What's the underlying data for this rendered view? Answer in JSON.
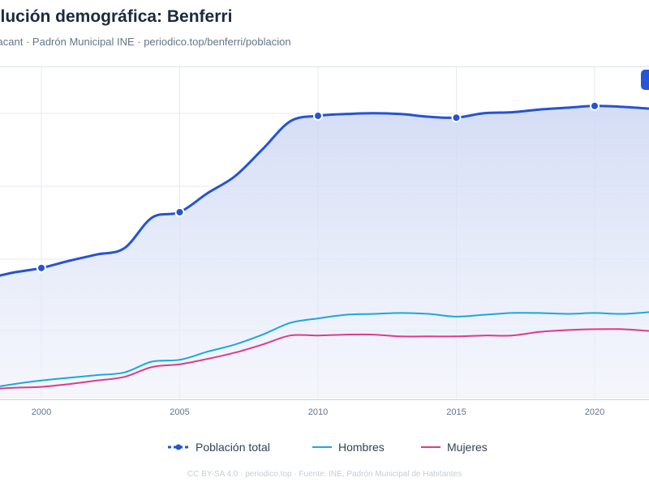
{
  "chart_data": {
    "type": "line",
    "title": "Evolución demográfica: Benferri",
    "subtitle": "Alacant · Padrón Municipal INE · periodico.top/benferri/poblacion",
    "xlabel": "",
    "ylabel": "",
    "x": [
      1998,
      1999,
      2000,
      2001,
      2002,
      2003,
      2004,
      2005,
      2006,
      2007,
      2008,
      2009,
      2010,
      2011,
      2012,
      2013,
      2014,
      2015,
      2016,
      2017,
      2018,
      2019,
      2020,
      2021,
      2022
    ],
    "x_ticks": [
      "2000",
      "2005",
      "2010",
      "2015",
      "2020"
    ],
    "series": [
      {
        "name": "Población total",
        "color": "#2453d4",
        "marker_every": 5,
        "values": [
          1225,
          1260,
          1285,
          1325,
          1360,
          1395,
          1565,
          1595,
          1700,
          1795,
          1945,
          2100,
          2130,
          2140,
          2145,
          2140,
          2125,
          2120,
          2145,
          2150,
          2165,
          2175,
          2185,
          2180,
          2170
        ]
      },
      {
        "name": "Hombres",
        "color": "#1aa7e0",
        "values": [
          615,
          640,
          660,
          675,
          690,
          705,
          765,
          775,
          820,
          860,
          915,
          980,
          1005,
          1025,
          1030,
          1035,
          1030,
          1015,
          1025,
          1035,
          1035,
          1030,
          1035,
          1030,
          1040
        ]
      },
      {
        "name": "Mujeres",
        "color": "#df3a8c",
        "values": [
          610,
          620,
          625,
          640,
          660,
          680,
          735,
          750,
          780,
          815,
          860,
          910,
          910,
          915,
          915,
          905,
          905,
          905,
          910,
          910,
          930,
          940,
          945,
          945,
          935
        ]
      }
    ],
    "ylim": [
      560,
      2400
    ],
    "grid": true,
    "legend_position": "bottom"
  },
  "footer": "CC BY-SA 4.0 · periodico.top · Fuente: INE, Padrón Municipal de Habitantes",
  "colors": {
    "area_fill_top": "#cdd7f4",
    "area_fill_bottom": "#eef1fb",
    "gridline": "#e5eaf1",
    "corner_button": "#2456d6"
  }
}
